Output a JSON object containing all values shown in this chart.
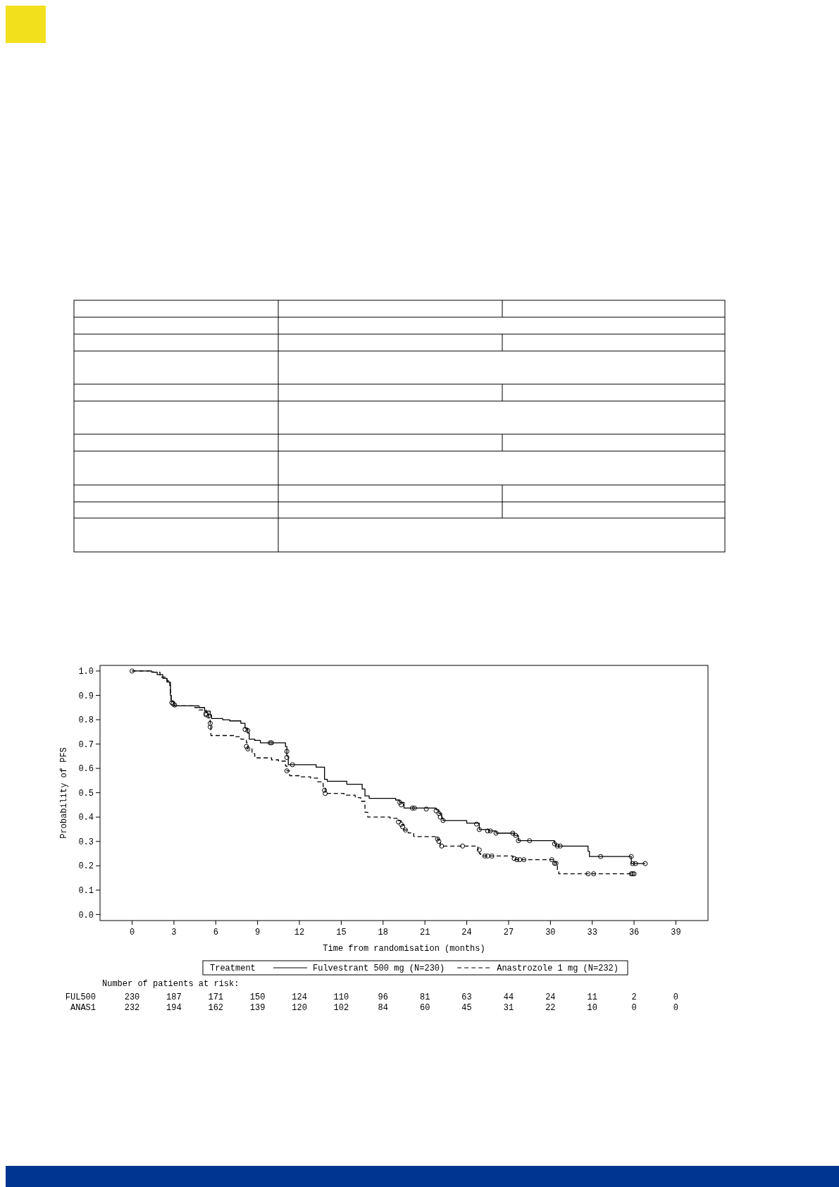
{
  "chart_data": {
    "type": "step",
    "xlabel": "Time from randomisation (months)",
    "ylabel": "Probability of PFS",
    "legend_title": "Treatment",
    "legend": "bottom",
    "xlim": [
      -2.3,
      41.3
    ],
    "ylim": [
      -0.025,
      1.023
    ],
    "xticks": [
      0,
      3,
      6,
      9,
      12,
      15,
      18,
      21,
      24,
      27,
      30,
      33,
      36,
      39
    ],
    "yticks": [
      {
        "value": 0,
        "label": "0.0"
      },
      0.1,
      0.2,
      0.3,
      0.4,
      0.5,
      0.6,
      0.7,
      0.8,
      0.9,
      {
        "value": 1,
        "label": "1.0"
      }
    ],
    "series": [
      {
        "name": "Fulvestrant 500 mg (N=230)",
        "type": "step",
        "color": "#000000",
        "line_style": "solid",
        "x": [
          0,
          1.4,
          1.8,
          2.2,
          2.5,
          2.7,
          2.75,
          2.8,
          3.0,
          4.8,
          5.2,
          5.6,
          5.7,
          6.5,
          7.0,
          7.8,
          8.1,
          8.3,
          8.4,
          8.8,
          9.2,
          11.0,
          11.1,
          11.2,
          13.2,
          13.8,
          14.0,
          15.4,
          16.5,
          16.7,
          17.0,
          18.9,
          19.2,
          19.5,
          21.8,
          22.0,
          22.2,
          22.3,
          24.0,
          24.9,
          25.6,
          26.1,
          27.4,
          27.7,
          30.3,
          30.4,
          32.7,
          32.8,
          35.8,
          36.8
        ],
        "values": [
          1.0,
          0.995,
          0.985,
          0.97,
          0.955,
          0.94,
          0.9,
          0.875,
          0.857,
          0.85,
          0.835,
          0.82,
          0.805,
          0.8,
          0.795,
          0.785,
          0.765,
          0.745,
          0.72,
          0.715,
          0.705,
          0.69,
          0.65,
          0.615,
          0.605,
          0.555,
          0.547,
          0.535,
          0.515,
          0.487,
          0.477,
          0.47,
          0.46,
          0.437,
          0.43,
          0.415,
          0.395,
          0.386,
          0.375,
          0.349,
          0.343,
          0.334,
          0.325,
          0.303,
          0.29,
          0.281,
          0.26,
          0.238,
          0.209,
          0.209
        ]
      },
      {
        "name": "Anastrozole 1 mg (N=232)",
        "type": "step",
        "color": "#000000",
        "line_style": "dashed",
        "x": [
          0,
          1.5,
          2.0,
          2.5,
          2.75,
          2.8,
          3.0,
          4.5,
          4.8,
          5.3,
          5.5,
          5.6,
          5.65,
          7.3,
          7.8,
          8.2,
          8.3,
          8.6,
          8.8,
          10.0,
          10.5,
          11.0,
          11.1,
          11.3,
          12.0,
          12.8,
          13.3,
          13.7,
          13.85,
          15.2,
          16.0,
          16.4,
          16.7,
          16.9,
          18.5,
          19.0,
          19.3,
          19.5,
          19.8,
          20.2,
          21.9,
          22.0,
          22.1,
          24.8,
          24.9,
          25.0,
          27.3,
          27.5,
          30.2,
          30.4,
          30.5,
          30.6,
          35.9
        ],
        "values": [
          1.0,
          0.995,
          0.975,
          0.96,
          0.9,
          0.875,
          0.857,
          0.85,
          0.84,
          0.83,
          0.8,
          0.775,
          0.735,
          0.73,
          0.72,
          0.705,
          0.68,
          0.66,
          0.643,
          0.635,
          0.63,
          0.61,
          0.59,
          0.57,
          0.565,
          0.56,
          0.545,
          0.525,
          0.497,
          0.49,
          0.48,
          0.465,
          0.42,
          0.4,
          0.395,
          0.385,
          0.37,
          0.347,
          0.335,
          0.32,
          0.31,
          0.295,
          0.281,
          0.265,
          0.25,
          0.24,
          0.235,
          0.225,
          0.215,
          0.2,
          0.185,
          0.167,
          0.167
        ]
      },
      {
        "type": "scatter",
        "color": "#000000",
        "marker": "circle",
        "x": [
          0,
          2.85,
          2.95,
          3.05,
          5.3,
          5.5,
          8.1,
          8.3,
          9.9,
          10.0,
          11.1,
          11.1,
          11.5,
          19.2,
          19.3,
          20.1,
          20.25,
          21.1,
          21.8,
          22.0,
          22.1,
          22.3,
          24.7,
          24.9,
          25.5,
          25.7,
          26.1,
          27.3,
          27.5,
          27.7,
          28.5,
          30.3,
          30.5,
          30.7,
          33.6,
          35.8,
          35.9,
          36.1,
          36.8
        ],
        "values": [
          1.0,
          0.87,
          0.865,
          0.86,
          0.825,
          0.815,
          0.76,
          0.755,
          0.705,
          0.705,
          0.67,
          0.645,
          0.615,
          0.46,
          0.45,
          0.437,
          0.437,
          0.433,
          0.426,
          0.415,
          0.4,
          0.386,
          0.371,
          0.349,
          0.343,
          0.343,
          0.334,
          0.334,
          0.325,
          0.303,
          0.303,
          0.29,
          0.281,
          0.281,
          0.238,
          0.238,
          0.209,
          0.209,
          0.209
        ]
      },
      {
        "type": "scatter",
        "color": "#000000",
        "marker": "circle",
        "x": [
          5.3,
          5.6,
          5.6,
          8.2,
          8.3,
          11.1,
          13.8,
          13.85,
          19.1,
          19.3,
          19.4,
          19.6,
          21.9,
          22.0,
          22.2,
          23.7,
          24.9,
          25.3,
          25.5,
          25.8,
          27.4,
          27.6,
          27.8,
          28.1,
          30.1,
          30.3,
          30.4,
          32.7,
          33.1,
          35.8,
          35.9,
          36.0
        ],
        "values": [
          0.82,
          0.785,
          0.77,
          0.69,
          0.68,
          0.59,
          0.51,
          0.497,
          0.38,
          0.37,
          0.36,
          0.347,
          0.31,
          0.3,
          0.281,
          0.281,
          0.265,
          0.24,
          0.24,
          0.24,
          0.23,
          0.225,
          0.225,
          0.225,
          0.225,
          0.21,
          0.21,
          0.167,
          0.167,
          0.167,
          0.167,
          0.167
        ]
      }
    ],
    "annotations": [
      "Number of patients at risk:",
      "FUL500",
      "230",
      "187",
      "171",
      "150",
      "124",
      "110",
      "96",
      "81",
      "63",
      "44",
      "24",
      "11",
      "2",
      "0",
      "ANAS1",
      "232",
      "194",
      "162",
      "139",
      "120",
      "102",
      "84",
      "60",
      "45",
      "31",
      "22",
      "10",
      "0",
      "0"
    ]
  }
}
